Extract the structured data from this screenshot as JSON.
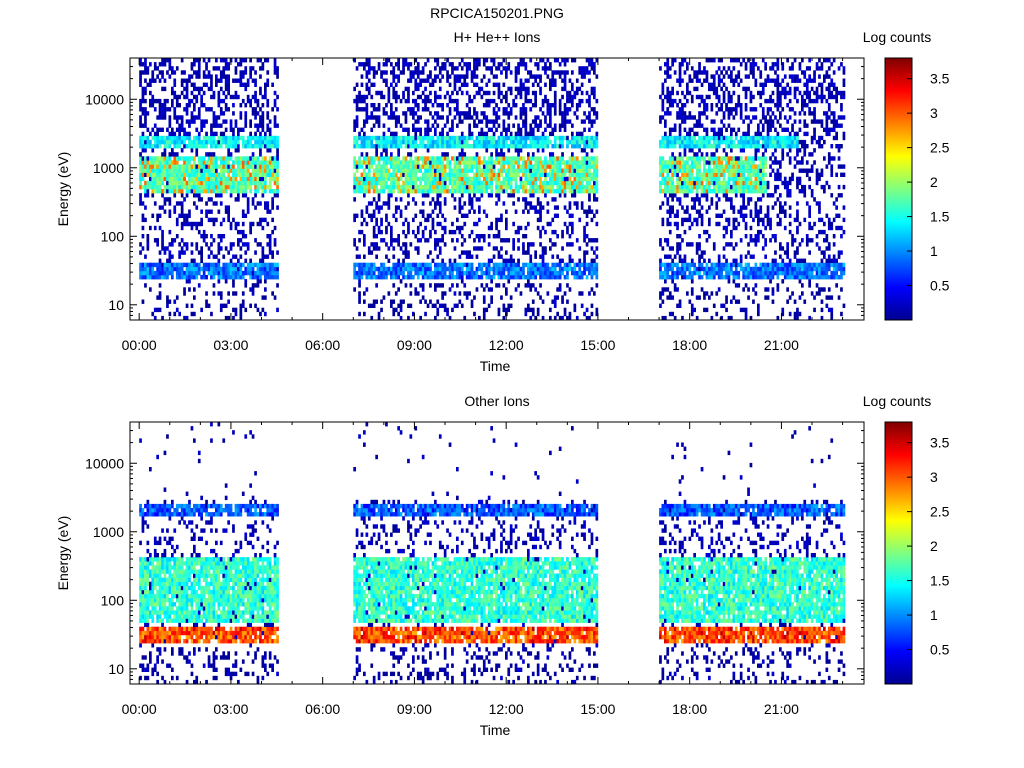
{
  "figure_title": "RPCICA150201.PNG",
  "chart_data": [
    {
      "type": "heatmap",
      "title": "H+ He++ Ions",
      "xlabel": "Time",
      "ylabel": "Energy (eV)",
      "x_ticks": [
        "00:00",
        "03:00",
        "06:00",
        "09:00",
        "12:00",
        "15:00",
        "18:00",
        "21:00"
      ],
      "x_range_hours": [
        -0.3,
        23.7
      ],
      "y_scale": "log",
      "y_ticks": [
        10,
        100,
        1000,
        10000
      ],
      "y_range": [
        6,
        40000
      ],
      "colorbar": {
        "label": "Log counts",
        "ticks": [
          0.5,
          1,
          1.5,
          2,
          2.5,
          3,
          3.5
        ],
        "range": [
          0,
          3.8
        ],
        "colormap": "jet"
      },
      "data_gaps_hours": [
        [
          4.5,
          7.0
        ],
        [
          15.0,
          17.0
        ]
      ],
      "data_segments_hours": [
        [
          0.0,
          4.5
        ],
        [
          7.0,
          15.0
        ],
        [
          17.0,
          23.0
        ]
      ],
      "bands": [
        {
          "energy_range_eV": [
            2000,
            3000
          ],
          "level": 1.4,
          "segments_hours": [
            [
              0.0,
              4.5
            ],
            [
              7.0,
              15.0
            ],
            [
              17.0,
              21.5
            ]
          ]
        },
        {
          "energy_range_eV": [
            400,
            1500
          ],
          "level": 1.7,
          "peak_level": 3.0,
          "segments_hours": [
            [
              0.0,
              4.5
            ],
            [
              7.0,
              15.0
            ],
            [
              17.0,
              20.5
            ]
          ]
        },
        {
          "energy_range_eV": [
            25,
            40
          ],
          "level": 0.9,
          "segments_hours": [
            [
              0.0,
              4.5
            ],
            [
              7.0,
              15.0
            ],
            [
              17.0,
              23.0
            ]
          ]
        }
      ],
      "grid": false
    },
    {
      "type": "heatmap",
      "title": "Other Ions",
      "xlabel": "Time",
      "ylabel": "Energy (eV)",
      "x_ticks": [
        "00:00",
        "03:00",
        "06:00",
        "09:00",
        "12:00",
        "15:00",
        "18:00",
        "21:00"
      ],
      "x_range_hours": [
        -0.3,
        23.7
      ],
      "y_scale": "log",
      "y_ticks": [
        10,
        100,
        1000,
        10000
      ],
      "y_range": [
        6,
        40000
      ],
      "colorbar": {
        "label": "Log counts",
        "ticks": [
          0.5,
          1,
          1.5,
          2,
          2.5,
          3,
          3.5
        ],
        "range": [
          0,
          3.8
        ],
        "colormap": "jet"
      },
      "data_gaps_hours": [
        [
          4.5,
          7.0
        ],
        [
          15.0,
          17.0
        ]
      ],
      "data_segments_hours": [
        [
          0.0,
          4.5
        ],
        [
          7.0,
          15.0
        ],
        [
          17.0,
          23.0
        ]
      ],
      "bands": [
        {
          "energy_range_eV": [
            1800,
            2500
          ],
          "level": 0.8,
          "segments_hours": [
            [
              0.0,
              4.5
            ],
            [
              7.0,
              15.0
            ],
            [
              17.0,
              23.0
            ]
          ]
        },
        {
          "energy_range_eV": [
            50,
            400
          ],
          "level": 1.6,
          "segments_hours": [
            [
              0.0,
              4.5
            ],
            [
              7.0,
              15.0
            ],
            [
              17.0,
              23.0
            ]
          ]
        },
        {
          "energy_range_eV": [
            25,
            40
          ],
          "level": 3.0,
          "peak_level": 3.6,
          "segments_hours": [
            [
              0.0,
              4.5
            ],
            [
              7.0,
              15.0
            ],
            [
              17.0,
              23.0
            ]
          ]
        }
      ],
      "grid": false
    }
  ]
}
